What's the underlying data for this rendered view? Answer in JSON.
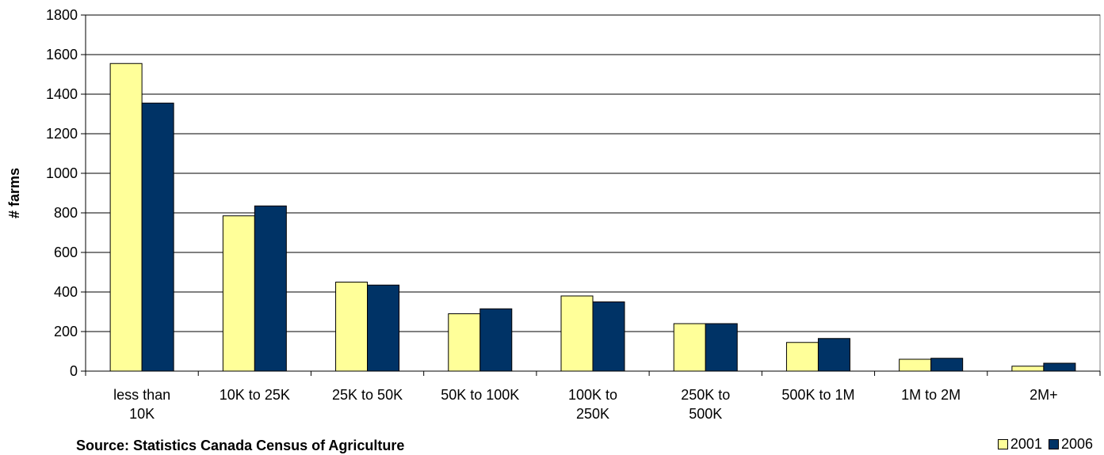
{
  "chart_data": {
    "type": "bar",
    "title": "",
    "xlabel": "",
    "ylabel": "# farms",
    "ylim": [
      0,
      1800
    ],
    "yticks": [
      0,
      200,
      400,
      600,
      800,
      1000,
      1200,
      1400,
      1600,
      1800
    ],
    "grid": true,
    "legend_position": "bottom-right",
    "categories": [
      [
        "less than",
        "10K"
      ],
      [
        "10K to 25K"
      ],
      [
        "25K to 50K"
      ],
      [
        "50K to 100K"
      ],
      [
        "100K to",
        "250K"
      ],
      [
        "250K to",
        "500K"
      ],
      [
        "500K to 1M"
      ],
      [
        "1M to 2M"
      ],
      [
        "2M+"
      ]
    ],
    "series": [
      {
        "name": "2001",
        "color": "#FFFF99",
        "values": [
          1555,
          785,
          450,
          290,
          380,
          240,
          145,
          60,
          25
        ]
      },
      {
        "name": "2006",
        "color": "#003366",
        "values": [
          1355,
          835,
          435,
          315,
          350,
          240,
          165,
          65,
          40
        ]
      }
    ]
  },
  "footer": {
    "source": "Source:  Statistics Canada Census of Agriculture"
  }
}
